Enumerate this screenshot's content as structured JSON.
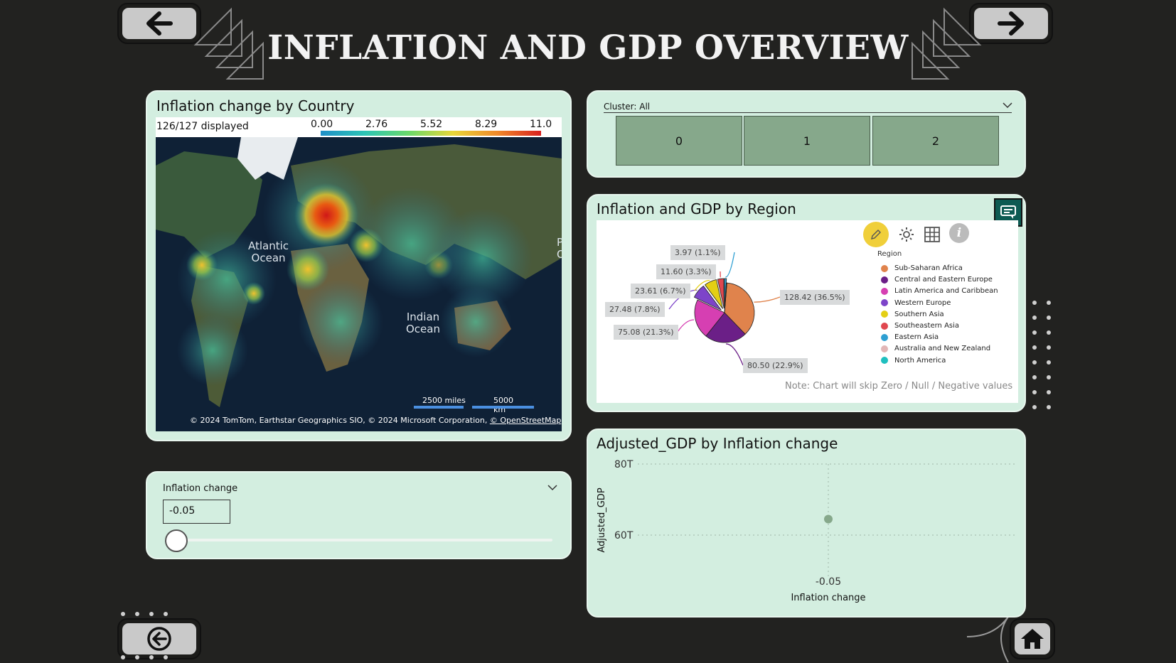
{
  "page": {
    "title": "INFLATION AND GDP OVERVIEW"
  },
  "nav": {
    "back_icon": "arrow-left-icon",
    "forward_icon": "arrow-right-icon",
    "return_icon": "circle-arrow-left-icon",
    "home_icon": "home-icon"
  },
  "map_card": {
    "title": "Inflation change by Country",
    "displayed": "126/127 displayed",
    "scale_ticks": [
      "0.00",
      "2.76",
      "5.52",
      "8.29",
      "11.0"
    ],
    "ocean_labels": {
      "atlantic_1": "Atlantic",
      "atlantic_2": "Ocean",
      "indian_1": "Indian",
      "indian_2": "Ocean",
      "pacific_1": "P",
      "pacific_2": "O"
    },
    "scale_miles": "2500 miles",
    "scale_km": "5000 km",
    "attribution": "© 2024 TomTom, Earthstar Geographics SIO, © 2024 Microsoft Corporation,",
    "attribution_link": "© OpenStreetMap"
  },
  "slicer": {
    "label": "Inflation change",
    "value": "-0.05",
    "slider_fraction": 0.0
  },
  "cluster": {
    "label": "Cluster: All",
    "buttons": [
      "0",
      "1",
      "2"
    ]
  },
  "region_card": {
    "title": "Inflation and GDP by Region",
    "legend_title": "Region",
    "note": "Note: Chart will skip Zero / Null / Negative values",
    "toolbar": [
      "pencil-icon",
      "gear-icon",
      "grid-icon",
      "info-icon"
    ],
    "corner_icon": "comment-icon"
  },
  "scatter_card": {
    "title": "Adjusted_GDP by Inflation change"
  },
  "chart_data": [
    {
      "type": "pie",
      "title": "Inflation and GDP by Region",
      "legend_title": "Region",
      "slices": [
        {
          "label": "Sub-Saharan Africa",
          "value": 128.42,
          "display": "128.42 (36.5%)",
          "color": "#e0834c"
        },
        {
          "label": "Central and Eastern Europe",
          "value": 80.5,
          "display": "80.50 (22.9%)",
          "color": "#6b1f87"
        },
        {
          "label": "Latin America and Caribbean",
          "value": 75.08,
          "display": "75.08 (21.3%)",
          "color": "#d63fb2"
        },
        {
          "label": "Western Europe",
          "value": 27.48,
          "display": "27.48 (7.8%)",
          "color": "#7d44c9"
        },
        {
          "label": "Southern Asia",
          "value": 23.61,
          "display": "23.61 (6.7%)",
          "color": "#e4cf14"
        },
        {
          "label": "Southeastern Asia",
          "value": 11.6,
          "display": "11.60 (3.3%)",
          "color": "#e0474f"
        },
        {
          "label": "Eastern Asia",
          "value": 3.97,
          "display": "3.97 (1.1%)",
          "color": "#2d9fd2"
        },
        {
          "label": "Australia and New Zealand",
          "value": 0.5,
          "display": "",
          "color": "#e2b6b6"
        },
        {
          "label": "North America",
          "value": 0.5,
          "display": "",
          "color": "#1fbfbf"
        }
      ]
    },
    {
      "type": "scatter",
      "title": "Adjusted_GDP by Inflation change",
      "xlabel": "Inflation change",
      "ylabel": "Adjusted_GDP",
      "x_ticks": [
        "-0.05"
      ],
      "y_ticks": [
        "80T",
        "60T"
      ],
      "ylim": [
        50,
        80
      ],
      "points": [
        {
          "x": -0.05,
          "y": 64.5
        }
      ]
    }
  ]
}
